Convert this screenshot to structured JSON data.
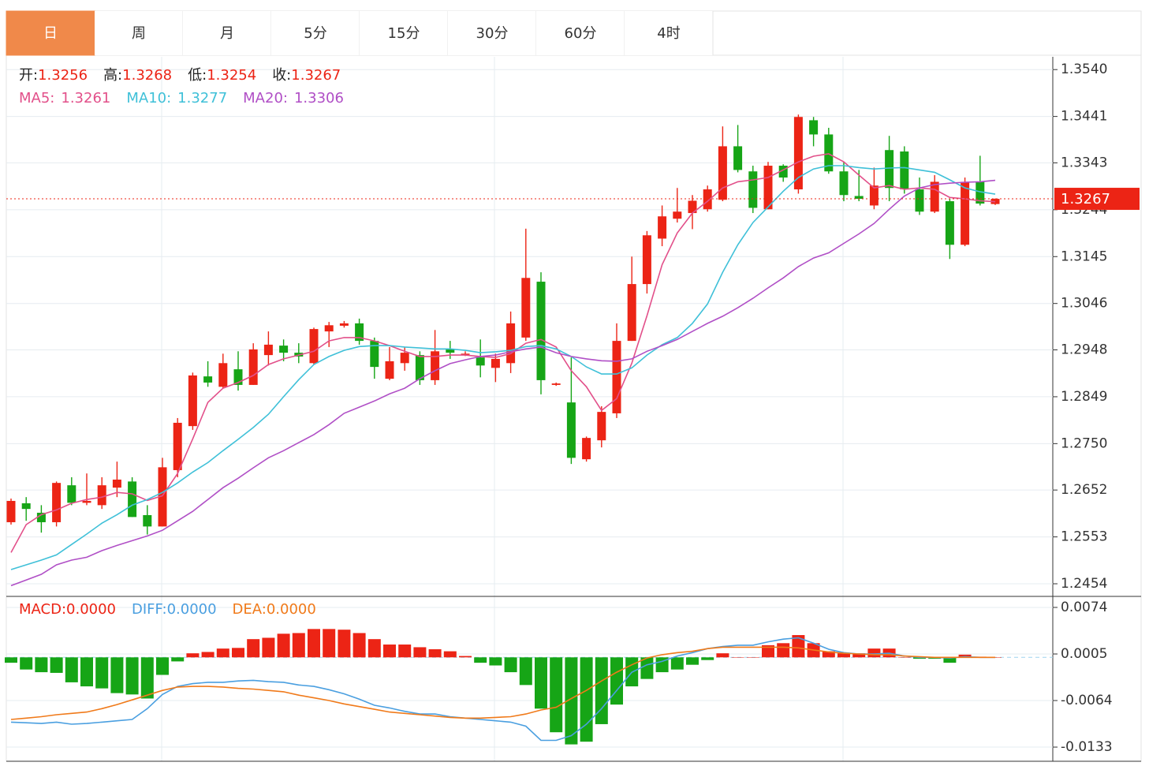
{
  "tabs": [
    "日",
    "周",
    "月",
    "5分",
    "15分",
    "30分",
    "60分",
    "4时"
  ],
  "active_tab": 0,
  "chart_data": [
    {
      "type": "candlestick",
      "up_color": "#ec2415",
      "down_color": "#16a516",
      "grid": true,
      "ohlc_labels": [
        "开:",
        "高:",
        "低:",
        "收:"
      ],
      "ylim": [
        1.2429,
        1.3567
      ],
      "yticks": [
        {
          "value": 1.354,
          "label": "1.3540"
        },
        1.3441,
        1.3343,
        1.3244,
        1.3145,
        1.3046,
        1.2948,
        1.2849,
        {
          "value": 1.275,
          "label": "1.2750"
        },
        1.2652,
        1.2553,
        1.2454
      ],
      "open": [
        1.2584,
        1.2624,
        1.2604,
        1.2584,
        1.2662,
        1.2625,
        1.262,
        1.2657,
        1.267,
        1.2599,
        1.2575,
        1.2694,
        1.2787,
        1.2892,
        1.287,
        1.2907,
        1.2874,
        1.2937,
        1.2957,
        1.2942,
        1.292,
        1.2987,
        1.2999,
        1.3004,
        1.2967,
        1.2887,
        1.292,
        1.2937,
        1.2884,
        1.2949,
        1.294,
        1.2932,
        1.291,
        1.292,
        1.2974,
        1.3092,
        1.2874,
        1.2837,
        1.2717,
        1.2757,
        1.2814,
        1.2967,
        1.3087,
        1.3183,
        1.3225,
        1.3237,
        1.3245,
        1.3265,
        1.3378,
        1.3325,
        1.3245,
        1.3337,
        1.3287,
        1.3433,
        1.3403,
        1.3325,
        1.3273,
        1.3253,
        1.337,
        1.3367,
        1.3287,
        1.324,
        1.3262,
        1.317,
        1.3303,
        1.3256
      ],
      "high": [
        1.2634,
        1.2637,
        1.262,
        1.267,
        1.2679,
        1.2687,
        1.2679,
        1.2712,
        1.2679,
        1.262,
        1.272,
        1.2804,
        1.29,
        1.2924,
        1.294,
        1.2945,
        1.2962,
        1.2987,
        1.297,
        1.2962,
        1.2995,
        1.3007,
        1.3009,
        1.3014,
        1.2974,
        1.2954,
        1.2954,
        1.2945,
        1.299,
        1.2967,
        1.2945,
        1.297,
        1.294,
        1.3029,
        1.3204,
        1.3112,
        1.2879,
        1.2932,
        1.2765,
        1.2829,
        1.3004,
        1.3145,
        1.3199,
        1.3253,
        1.329,
        1.3275,
        1.3295,
        1.342,
        1.3423,
        1.3337,
        1.3345,
        1.334,
        1.3445,
        1.344,
        1.3417,
        1.3345,
        1.3328,
        1.3333,
        1.34,
        1.3378,
        1.3312,
        1.3317,
        1.3267,
        1.3312,
        1.3358,
        1.3268
      ],
      "low": [
        1.2579,
        1.2587,
        1.2562,
        1.2575,
        1.262,
        1.262,
        1.2612,
        1.2637,
        1.2595,
        1.2558,
        1.2575,
        1.2679,
        1.2779,
        1.287,
        1.2867,
        1.2862,
        1.2874,
        1.2915,
        1.2924,
        1.292,
        1.2917,
        1.2954,
        1.2995,
        1.2959,
        1.2887,
        1.2884,
        1.2904,
        1.2874,
        1.2874,
        1.2929,
        1.2935,
        1.289,
        1.288,
        1.2899,
        1.2967,
        1.2854,
        1.2872,
        1.2707,
        1.2712,
        1.2742,
        1.2804,
        1.2967,
        1.3067,
        1.3167,
        1.3217,
        1.3203,
        1.324,
        1.3262,
        1.3323,
        1.3237,
        1.3245,
        1.3303,
        1.3278,
        1.3378,
        1.332,
        1.3262,
        1.3262,
        1.3245,
        1.3262,
        1.3278,
        1.3233,
        1.3237,
        1.314,
        1.3167,
        1.3253,
        1.3254
      ],
      "close": [
        1.2629,
        1.2612,
        1.2584,
        1.2667,
        1.2625,
        1.2629,
        1.2662,
        1.2674,
        1.2595,
        1.2575,
        1.27,
        1.2794,
        1.2894,
        1.2879,
        1.292,
        1.2874,
        1.2949,
        1.2959,
        1.2942,
        1.2934,
        1.2992,
        1.3,
        1.3004,
        1.2967,
        1.2912,
        1.2924,
        1.2942,
        1.2884,
        1.2945,
        1.2942,
        1.294,
        1.2915,
        1.2929,
        1.3004,
        1.31,
        1.2884,
        1.2877,
        1.272,
        1.2762,
        1.2817,
        1.2967,
        1.3087,
        1.319,
        1.323,
        1.324,
        1.3263,
        1.3287,
        1.3378,
        1.3328,
        1.3248,
        1.3337,
        1.3312,
        1.344,
        1.3403,
        1.3325,
        1.3275,
        1.3267,
        1.3295,
        1.329,
        1.3287,
        1.324,
        1.3303,
        1.317,
        1.3303,
        1.3257,
        1.3267
      ],
      "series": [
        {
          "name": "MA5:",
          "color": "#e2508a",
          "values": [
            1.252,
            1.2579,
            1.26,
            1.261,
            1.2624,
            1.2632,
            1.2637,
            1.2647,
            1.2644,
            1.263,
            1.264,
            1.2687,
            1.276,
            1.2837,
            1.2867,
            1.2879,
            1.2894,
            1.2917,
            1.2929,
            1.2937,
            1.2945,
            1.2967,
            1.2974,
            1.2974,
            1.2967,
            1.2957,
            1.2945,
            1.2934,
            1.2934,
            1.2937,
            1.2937,
            1.2934,
            1.2932,
            1.294,
            1.2962,
            1.297,
            1.2954,
            1.2904,
            1.287,
            1.282,
            1.2845,
            1.292,
            1.302,
            1.3128,
            1.3195,
            1.3237,
            1.3262,
            1.329,
            1.3303,
            1.3307,
            1.3312,
            1.3328,
            1.3345,
            1.3357,
            1.3362,
            1.3345,
            1.3317,
            1.329,
            1.3295,
            1.3287,
            1.329,
            1.3287,
            1.327,
            1.3267,
            1.3263,
            1.3261
          ]
        },
        {
          "name": "MA10:",
          "color": "#3fc0d8",
          "values": [
            1.2484,
            1.2494,
            1.2504,
            1.2515,
            1.2537,
            1.2559,
            1.2582,
            1.26,
            1.262,
            1.2632,
            1.2647,
            1.2667,
            1.269,
            1.271,
            1.2735,
            1.2759,
            1.2784,
            1.2812,
            1.2849,
            1.2885,
            1.2917,
            1.2934,
            1.2947,
            1.2955,
            1.2957,
            1.2957,
            1.2954,
            1.2952,
            1.295,
            1.295,
            1.2947,
            1.2942,
            1.2944,
            1.2947,
            1.2955,
            1.2957,
            1.295,
            1.2934,
            1.2912,
            1.2897,
            1.2897,
            1.291,
            1.2937,
            1.2959,
            1.2974,
            1.3004,
            1.3045,
            1.3112,
            1.317,
            1.3217,
            1.325,
            1.3283,
            1.3312,
            1.333,
            1.3337,
            1.3337,
            1.3333,
            1.333,
            1.3332,
            1.3333,
            1.3328,
            1.3323,
            1.3307,
            1.329,
            1.3282,
            1.3277
          ]
        },
        {
          "name": "MA20:",
          "color": "#b04fc6",
          "values": [
            1.245,
            1.2462,
            1.2474,
            1.2494,
            1.2504,
            1.251,
            1.2524,
            1.2535,
            1.2545,
            1.2555,
            1.2567,
            1.2587,
            1.2607,
            1.2632,
            1.2657,
            1.2677,
            1.2699,
            1.272,
            1.2735,
            1.2752,
            1.2769,
            1.279,
            1.2814,
            1.2827,
            1.284,
            1.2855,
            1.2867,
            1.2887,
            1.2904,
            1.2919,
            1.2927,
            1.2934,
            1.2937,
            1.2944,
            1.295,
            1.2954,
            1.2942,
            1.2934,
            1.2929,
            1.2925,
            1.2924,
            1.2929,
            1.2945,
            1.2957,
            1.297,
            1.2987,
            1.3004,
            1.3019,
            1.3037,
            1.3057,
            1.3079,
            1.31,
            1.3124,
            1.3142,
            1.3153,
            1.3173,
            1.3193,
            1.3215,
            1.3245,
            1.3273,
            1.329,
            1.3297,
            1.33,
            1.3302,
            1.3303,
            1.3306
          ]
        }
      ]
    },
    {
      "type": "macd",
      "grid": true,
      "ylim": [
        -0.0154,
        0.0088
      ],
      "yticks": [
        0.0074,
        0.0005,
        -0.0064,
        -0.0133
      ],
      "series": [
        {
          "name": "MACD:",
          "color": "#ec2415",
          "down_color": "#16a516",
          "legend_value": "0.0000",
          "values": [
            -0.0008,
            -0.0018,
            -0.0022,
            -0.0023,
            -0.0037,
            -0.0043,
            -0.0046,
            -0.0053,
            -0.0055,
            -0.0061,
            -0.0026,
            -0.0006,
            0.0006,
            0.0008,
            0.0013,
            0.0014,
            0.0027,
            0.0029,
            0.0035,
            0.0036,
            0.0042,
            0.0042,
            0.0041,
            0.0036,
            0.0027,
            0.0019,
            0.0019,
            0.0015,
            0.0012,
            0.0009,
            0.0002,
            -0.0008,
            -0.0012,
            -0.0022,
            -0.0041,
            -0.0076,
            -0.0111,
            -0.0129,
            -0.0125,
            -0.0099,
            -0.007,
            -0.0043,
            -0.0032,
            -0.0022,
            -0.0018,
            -0.0011,
            -0.0004,
            0.0006,
            0,
            0,
            0.0018,
            0.0021,
            0.0033,
            0.0021,
            0.0009,
            0.0006,
            0.0006,
            0.0013,
            0.0013,
            0,
            -0.0002,
            -0.0002,
            -0.0008,
            0.0004,
            0.0001,
            0
          ]
        },
        {
          "name": "DIFF:",
          "color": "#4a9fe0",
          "legend_value": "0.0000",
          "values": [
            -0.0096,
            -0.0097,
            -0.0098,
            -0.0096,
            -0.0099,
            -0.0098,
            -0.0096,
            -0.0094,
            -0.0092,
            -0.0076,
            -0.0055,
            -0.0043,
            -0.0039,
            -0.0037,
            -0.0037,
            -0.0035,
            -0.0034,
            -0.0036,
            -0.0037,
            -0.0041,
            -0.0043,
            -0.0048,
            -0.0054,
            -0.0062,
            -0.0071,
            -0.0075,
            -0.008,
            -0.0084,
            -0.0084,
            -0.0088,
            -0.009,
            -0.0092,
            -0.0094,
            -0.0096,
            -0.0102,
            -0.0123,
            -0.0123,
            -0.0116,
            -0.0099,
            -0.0076,
            -0.0049,
            -0.0022,
            -0.0011,
            -0.0006,
            0.0002,
            0.0007,
            0.0013,
            0.0016,
            0.0018,
            0.0018,
            0.0023,
            0.0027,
            0.0029,
            0.0021,
            0.0012,
            0.0007,
            0.0005,
            0.0005,
            0.0006,
            0.0002,
            0,
            0,
            -0.0001,
            0.0001,
            0,
            0
          ]
        },
        {
          "name": "DEA:",
          "color": "#f07a1a",
          "legend_value": "0.0000",
          "values": [
            -0.0092,
            -0.009,
            -0.0088,
            -0.0085,
            -0.0083,
            -0.0081,
            -0.0076,
            -0.007,
            -0.0063,
            -0.0056,
            -0.0049,
            -0.0044,
            -0.0043,
            -0.0043,
            -0.0044,
            -0.0046,
            -0.0047,
            -0.0049,
            -0.0051,
            -0.0056,
            -0.006,
            -0.0064,
            -0.0069,
            -0.0073,
            -0.0077,
            -0.0081,
            -0.0083,
            -0.0085,
            -0.0087,
            -0.0089,
            -0.009,
            -0.009,
            -0.0089,
            -0.0088,
            -0.0084,
            -0.0078,
            -0.0074,
            -0.0061,
            -0.0049,
            -0.0035,
            -0.0022,
            -0.0011,
            -0.0001,
            0.0004,
            0.0007,
            0.0009,
            0.0013,
            0.0015,
            0.0015,
            0.0015,
            0.0015,
            0.0015,
            0.0014,
            0.0011,
            0.0008,
            0.0006,
            0.0005,
            0.0004,
            0.0004,
            0.0002,
            0.0001,
            0,
            0,
            0,
            0,
            0
          ]
        }
      ]
    }
  ]
}
